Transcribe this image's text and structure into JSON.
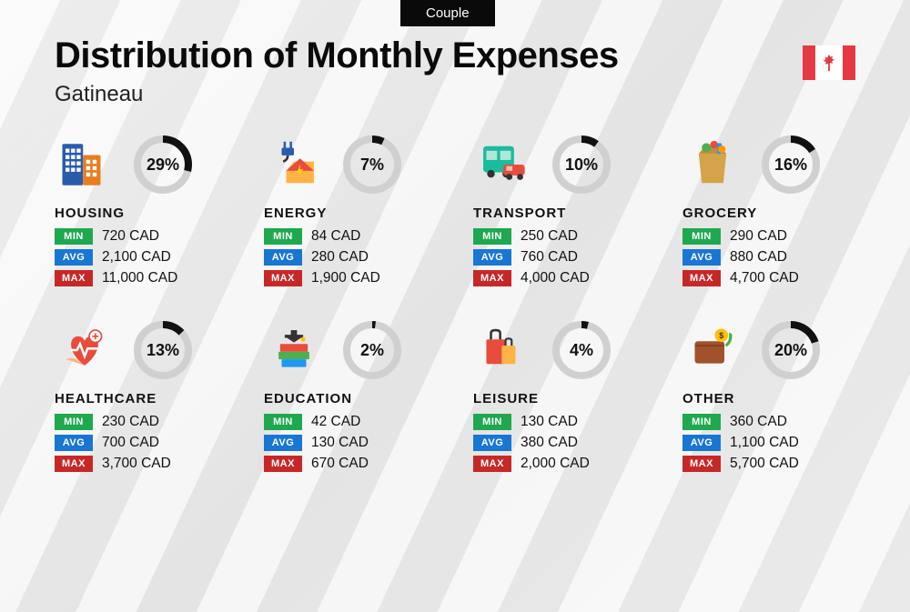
{
  "badge": "Couple",
  "title": "Distribution of Monthly Expenses",
  "subtitle": "Gatineau",
  "currency": "CAD",
  "colors": {
    "min": "#1fa850",
    "avg": "#1976d2",
    "max": "#c62828",
    "donut_track": "#d0d0d0",
    "donut_fill": "#111111",
    "flag_red": "#e63946"
  },
  "labels": {
    "min": "MIN",
    "avg": "AVG",
    "max": "MAX"
  },
  "donut": {
    "radius": 28,
    "stroke_width": 8,
    "circumference": 175.93
  },
  "categories": [
    {
      "name": "HOUSING",
      "pct": 29,
      "min": "720",
      "avg": "2,100",
      "max": "11,000",
      "icon": "buildings"
    },
    {
      "name": "ENERGY",
      "pct": 7,
      "min": "84",
      "avg": "280",
      "max": "1,900",
      "icon": "energy"
    },
    {
      "name": "TRANSPORT",
      "pct": 10,
      "min": "250",
      "avg": "760",
      "max": "4,000",
      "icon": "transport"
    },
    {
      "name": "GROCERY",
      "pct": 16,
      "min": "290",
      "avg": "880",
      "max": "4,700",
      "icon": "grocery"
    },
    {
      "name": "HEALTHCARE",
      "pct": 13,
      "min": "230",
      "avg": "700",
      "max": "3,700",
      "icon": "health"
    },
    {
      "name": "EDUCATION",
      "pct": 2,
      "min": "42",
      "avg": "130",
      "max": "670",
      "icon": "education"
    },
    {
      "name": "LEISURE",
      "pct": 4,
      "min": "130",
      "avg": "380",
      "max": "2,000",
      "icon": "leisure"
    },
    {
      "name": "OTHER",
      "pct": 20,
      "min": "360",
      "avg": "1,100",
      "max": "5,700",
      "icon": "other"
    }
  ],
  "icon_svgs": {
    "buildings": "<svg viewBox='0 0 64 64' width='60' height='56'><rect x='4' y='6' width='26' height='52' fill='#2a5caa' rx='2'/><rect x='8' y='12' width='5' height='5' fill='#fff'/><rect x='15' y='12' width='5' height='5' fill='#fff'/><rect x='22' y='12' width='5' height='5' fill='#fff'/><rect x='8' y='20' width='5' height='5' fill='#fff'/><rect x='15' y='20' width='5' height='5' fill='#fff'/><rect x='22' y='20' width='5' height='5' fill='#fff'/><rect x='8' y='28' width='5' height='5' fill='#fff'/><rect x='15' y='28' width='5' height='5' fill='#fff'/><rect x='22' y='28' width='5' height='5' fill='#fff'/><rect x='8' y='36' width='5' height='5' fill='#fff'/><rect x='15' y='36' width='5' height='5' fill='#fff'/><rect x='22' y='36' width='5' height='5' fill='#fff'/><rect x='30' y='20' width='22' height='38' fill='#e67e22' rx='2'/><rect x='34' y='26' width='5' height='5' fill='#fff'/><rect x='42' y='26' width='5' height='5' fill='#fff'/><rect x='34' y='34' width='5' height='5' fill='#fff'/><rect x='42' y='34' width='5' height='5' fill='#fff'/><rect x='34' y='42' width='5' height='5' fill='#fff'/><rect x='42' y='42' width='5' height='5' fill='#fff'/></svg>",
    "energy": "<svg viewBox='0 0 64 64' width='56' height='54'><path d='M20 2 L20 10 M28 2 L28 10' stroke='#2a5caa' stroke-width='3'/><rect x='16' y='10' width='16' height='10' fill='#2a5caa' rx='2'/><path d='M24 20 Q24 26 18 28' stroke='#333' stroke-width='3' fill='none'/><path d='M32 28 L58 28 L58 56 L22 56 L22 40 Z' fill='#ffb347'/><path d='M22 40 L40 24 L58 40' fill='#e74c3c'/><path d='M40 32 L36 42 L40 42 L36 50 L44 38 L40 38 Z' fill='#ffd700'/></svg>",
    "transport": "<svg viewBox='0 0 64 64' width='58' height='54'><rect x='6' y='8' width='40' height='34' fill='#1abc9c' rx='4'/><rect x='10' y='14' width='14' height='12' fill='#b3e5d9'/><rect x='28' y='14' width='14' height='12' fill='#b3e5d9'/><circle cx='16' cy='44' r='5' fill='#333'/><circle cx='36' cy='44' r='5' fill='#333'/><rect x='32' y='32' width='28' height='14' fill='#e74c3c' rx='4'/><rect x='36' y='34' width='8' height='6' fill='#fbb'/><circle cx='40' cy='48' r='4' fill='#333'/><circle cx='54' cy='48' r='4' fill='#333'/></svg>",
    "grocery": "<svg viewBox='0 0 64 64' width='54' height='56'><path d='M14 18 L50 18 L46 56 L18 56 Z' fill='#d4a34a'/><path d='M14 18 L22 8 L42 8 L50 18' fill='#c0903a'/><circle cx='24' cy='10' r='6' fill='#4caf50'/><circle cx='34' cy='6' r='5' fill='#e74c3c'/><rect x='38' y='4' width='6' height='14' fill='#2196f3' rx='2'/><circle cx='44' cy='12' r='5' fill='#ff9800'/></svg>",
    "health": "<svg viewBox='0 0 64 64' width='56' height='54'><path d='M32 52 C10 36 10 14 24 14 C30 14 32 20 32 20 C32 20 34 14 40 14 C54 14 54 36 32 52 Z' fill='#e74c3c'/><path d='M14 32 L22 32 L26 24 L32 40 L36 30 L50 30' stroke='#fff' stroke-width='3' fill='none'/><circle cx='46' cy='14' r='8' fill='#fff' stroke='#e74c3c' stroke-width='2'/><path d='M46 10 L46 18 M42 14 L50 14' stroke='#e74c3c' stroke-width='2'/><path d='M8 44 Q16 40 24 46 Q32 52 32 52' fill='#ffb380'/></svg>",
    "education": "<svg viewBox='0 0 64 64' width='54' height='56'><rect x='12' y='34' width='40' height='10' fill='#4caf50' rx='1'/><rect x='14' y='24' width='36' height='10' fill='#e74c3c' rx='1'/><rect x='16' y='44' width='32' height='10' fill='#2196f3' rx='1'/><path d='M20 14 L44 14 L32 22 Z' fill='#333'/><rect x='28' y='6' width='8' height='10' fill='#333'/><rect x='20' y='12' width='24' height='4' fill='#333'/><circle cx='44' cy='18' r='3' fill='#ffc107'/></svg>",
    "leisure": "<svg viewBox='0 0 64 64' width='54' height='54'><rect x='10' y='18' width='24' height='32' fill='#e74c3c' rx='2'/><path d='M16 18 L16 10 Q16 6 22 6 Q28 6 28 10 L28 18' stroke='#333' stroke-width='3' fill='none'/><rect x='30' y='26' width='18' height='24' fill='#ffb347' rx='2'/><path d='M35 26 L35 20 Q35 17 39 17 Q43 17 43 20 L43 26' stroke='#333' stroke-width='2.5' fill='none'/></svg>",
    "other": "<svg viewBox='0 0 64 64' width='56' height='52'><rect x='8' y='20' width='40' height='30' fill='#a0522d' rx='4'/><path d='M8 26 L48 26' stroke='#7a3e1f' stroke-width='2'/><circle cx='44' cy='12' r='9' fill='#ffc107'/><text x='44' y='16' font-size='11' text-anchor='middle' fill='#333' font-weight='bold'>$</text><path d='M50 26 Q58 20 56 10' stroke='#4caf50' stroke-width='4' fill='none'/><path d='M54 8 L58 10 L56 14' fill='#4caf50'/></svg>"
  }
}
